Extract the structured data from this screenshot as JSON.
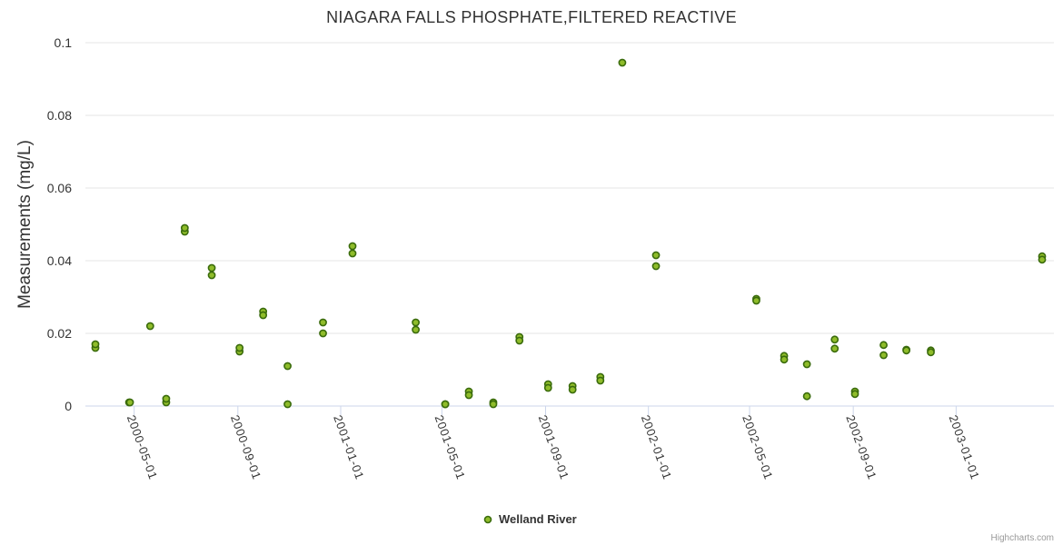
{
  "chart_data": {
    "type": "scatter",
    "title": "NIAGARA FALLS PHOSPHATE,FILTERED REACTIVE",
    "ylabel": "Measurements (mg/L)",
    "ylim": [
      0,
      0.1
    ],
    "yticks": [
      0,
      0.02,
      0.04,
      0.06,
      0.08,
      0.1
    ],
    "ytick_labels": [
      "0",
      "0.02",
      "0.04",
      "0.06",
      "0.08",
      "0.1"
    ],
    "xlim": [
      "2000-03-16",
      "2003-04-13"
    ],
    "xticks": [
      "2000-05-01",
      "2000-09-01",
      "2001-01-01",
      "2001-05-01",
      "2001-09-01",
      "2002-01-01",
      "2002-05-01",
      "2002-09-01",
      "2003-01-01"
    ],
    "marker_color": "#8fbc2a",
    "marker_edge": "#3a6b0c",
    "grid": true,
    "legend_position": "bottom-center",
    "series": [
      {
        "name": "Welland River",
        "points": [
          [
            "2000-03-16",
            0.016
          ],
          [
            "2000-03-16",
            0.017
          ],
          [
            "2000-04-25",
            0.001
          ],
          [
            "2000-04-26",
            0.001
          ],
          [
            "2000-05-20",
            0.022
          ],
          [
            "2000-06-08",
            0.001
          ],
          [
            "2000-06-08",
            0.002
          ],
          [
            "2000-06-30",
            0.048
          ],
          [
            "2000-06-30",
            0.049
          ],
          [
            "2000-08-01",
            0.036
          ],
          [
            "2000-08-01",
            0.038
          ],
          [
            "2000-09-03",
            0.015
          ],
          [
            "2000-09-03",
            0.016
          ],
          [
            "2000-10-01",
            0.026
          ],
          [
            "2000-10-01",
            0.025
          ],
          [
            "2000-10-30",
            0.011
          ],
          [
            "2000-10-30",
            0.0005
          ],
          [
            "2000-12-11",
            0.023
          ],
          [
            "2000-12-11",
            0.02
          ],
          [
            "2001-01-15",
            0.044
          ],
          [
            "2001-01-15",
            0.042
          ],
          [
            "2001-03-31",
            0.023
          ],
          [
            "2001-03-31",
            0.021
          ],
          [
            "2001-05-05",
            0.0005
          ],
          [
            "2001-05-05",
            0.0005
          ],
          [
            "2001-06-02",
            0.004
          ],
          [
            "2001-06-02",
            0.003
          ],
          [
            "2001-07-01",
            0.001
          ],
          [
            "2001-07-01",
            0.0005
          ],
          [
            "2001-08-01",
            0.019
          ],
          [
            "2001-08-01",
            0.018
          ],
          [
            "2001-09-04",
            0.006
          ],
          [
            "2001-09-04",
            0.005
          ],
          [
            "2001-10-03",
            0.0055
          ],
          [
            "2001-10-03",
            0.0045
          ],
          [
            "2001-11-05",
            0.008
          ],
          [
            "2001-11-05",
            0.007
          ],
          [
            "2001-12-01",
            0.0945
          ],
          [
            "2002-01-10",
            0.0415
          ],
          [
            "2002-01-10",
            0.0385
          ],
          [
            "2002-05-09",
            0.0295
          ],
          [
            "2002-05-09",
            0.029
          ],
          [
            "2002-06-11",
            0.0138
          ],
          [
            "2002-06-11",
            0.0128
          ],
          [
            "2002-07-08",
            0.0115
          ],
          [
            "2002-07-08",
            0.0027
          ],
          [
            "2002-08-10",
            0.0183
          ],
          [
            "2002-08-10",
            0.0158
          ],
          [
            "2002-09-03",
            0.004
          ],
          [
            "2002-09-03",
            0.0033
          ],
          [
            "2002-10-07",
            0.0168
          ],
          [
            "2002-10-07",
            0.014
          ],
          [
            "2002-11-03",
            0.0155
          ],
          [
            "2002-11-03",
            0.0153
          ],
          [
            "2002-12-02",
            0.0153
          ],
          [
            "2002-12-02",
            0.0148
          ],
          [
            "2003-04-13",
            0.0412
          ],
          [
            "2003-04-13",
            0.0403
          ]
        ]
      }
    ]
  },
  "credits": "Highcharts.com"
}
